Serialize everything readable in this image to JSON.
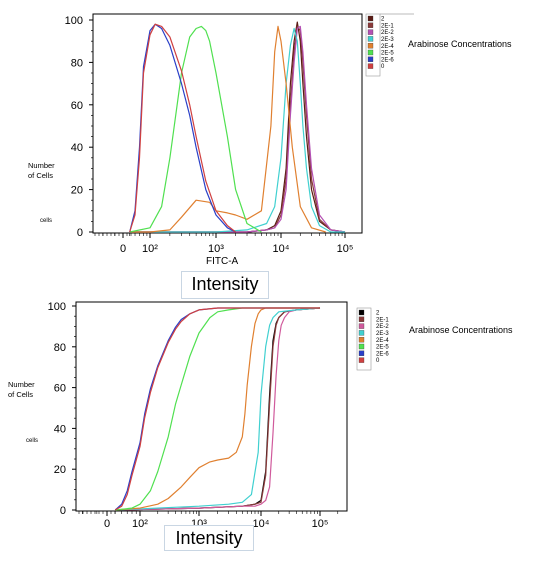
{
  "legend_title": "Arabinose Concentrations",
  "axis_caption": "Intensity",
  "chart_data": [
    {
      "type": "line",
      "xscale": "log",
      "xlabel": "FITC-A",
      "xticks": [
        "0",
        "10²",
        "10³",
        "10⁴",
        "10⁵"
      ],
      "y_label": "Number of Cells",
      "y_label_lines": [
        "Number",
        "of Cells"
      ],
      "y_sub": "cells",
      "ylim": [
        0,
        100
      ],
      "yticks": [
        "0",
        "20",
        "40",
        "60",
        "80",
        "100"
      ],
      "series": [
        {
          "name": "2",
          "color": "#5a1a14",
          "x": [
            50,
            100,
            200,
            500,
            1000,
            3000,
            6000,
            8000,
            10000,
            12000,
            14000,
            16000,
            18000,
            20000,
            22000,
            25000,
            30000,
            40000,
            60000,
            100000
          ],
          "y": [
            0,
            0,
            0,
            0,
            0,
            0,
            1,
            3,
            10,
            30,
            70,
            90,
            99,
            90,
            70,
            45,
            20,
            5,
            1,
            0
          ]
        },
        {
          "name": "2E-1",
          "color": "#8a3a3a",
          "x": [
            50,
            100,
            200,
            500,
            1000,
            3000,
            6000,
            8000,
            10000,
            12000,
            14000,
            16000,
            18000,
            20000,
            22000,
            25000,
            30000,
            40000,
            60000,
            100000
          ],
          "y": [
            0,
            0,
            0,
            0,
            0,
            0,
            1,
            2,
            8,
            25,
            60,
            85,
            97,
            95,
            80,
            55,
            25,
            6,
            1,
            0
          ]
        },
        {
          "name": "2E-2",
          "color": "#b450b4",
          "x": [
            50,
            100,
            200,
            500,
            1000,
            3000,
            6000,
            8000,
            10000,
            12000,
            14000,
            16000,
            18000,
            20000,
            22000,
            25000,
            30000,
            40000,
            60000,
            100000
          ],
          "y": [
            0,
            0,
            0,
            0,
            0,
            0,
            1,
            2,
            6,
            20,
            55,
            80,
            96,
            97,
            85,
            60,
            30,
            8,
            1,
            0
          ]
        },
        {
          "name": "2E-3",
          "color": "#40d0d0",
          "x": [
            50,
            100,
            200,
            500,
            1000,
            3000,
            6000,
            8000,
            10000,
            12000,
            14000,
            16000,
            18000,
            20000,
            22000,
            25000,
            30000,
            40000,
            60000,
            100000
          ],
          "y": [
            0,
            0,
            0,
            0,
            0,
            1,
            4,
            12,
            35,
            70,
            88,
            96,
            90,
            70,
            50,
            30,
            12,
            3,
            0,
            0
          ]
        },
        {
          "name": "2E-4",
          "color": "#e08030",
          "x": [
            50,
            100,
            200,
            300,
            500,
            800,
            1000,
            1500,
            2000,
            3000,
            5000,
            7000,
            8000,
            9000,
            10000,
            12000,
            15000,
            20000,
            30000,
            50000
          ],
          "y": [
            0,
            0,
            1,
            7,
            15,
            14,
            10,
            9,
            8,
            6,
            10,
            50,
            85,
            97,
            90,
            70,
            40,
            12,
            2,
            0
          ]
        },
        {
          "name": "2E-5",
          "color": "#50e050",
          "x": [
            50,
            100,
            150,
            200,
            300,
            400,
            500,
            600,
            700,
            800,
            1000,
            1500,
            2000,
            3000,
            5000
          ],
          "y": [
            0,
            2,
            12,
            35,
            75,
            92,
            96,
            97,
            95,
            90,
            75,
            45,
            20,
            4,
            0
          ]
        },
        {
          "name": "2E-6",
          "color": "#2a3fc8",
          "x": [
            50,
            60,
            70,
            80,
            100,
            120,
            150,
            200,
            300,
            400,
            500,
            700,
            1000,
            1500,
            2000
          ],
          "y": [
            0,
            10,
            40,
            78,
            95,
            98,
            96,
            88,
            70,
            55,
            40,
            20,
            8,
            2,
            0
          ]
        },
        {
          "name": "0",
          "color": "#d04040",
          "x": [
            50,
            60,
            70,
            80,
            100,
            120,
            150,
            200,
            300,
            400,
            500,
            700,
            1000,
            1500,
            2000
          ],
          "y": [
            0,
            8,
            35,
            75,
            93,
            98,
            97,
            92,
            76,
            60,
            45,
            24,
            10,
            3,
            0
          ]
        }
      ]
    },
    {
      "type": "line",
      "xscale": "log",
      "xlabel": "",
      "xticks": [
        "0",
        "10²",
        "10³",
        "10⁴",
        "10⁵"
      ],
      "y_label": "Number of Cells",
      "y_label_lines": [
        "Number",
        "of Cells"
      ],
      "y_sub": "cells",
      "ylim": [
        0,
        100
      ],
      "yticks": [
        "0",
        "20",
        "40",
        "60",
        "80",
        "100"
      ],
      "series": [
        {
          "name": "2",
          "color": "#000000",
          "x": [
            50,
            1000,
            5000,
            8000,
            10000,
            12000,
            14000,
            16000,
            18000,
            20000,
            25000,
            40000,
            100000
          ],
          "y": [
            0,
            1,
            2,
            3,
            5,
            20,
            60,
            88,
            97,
            100,
            103,
            104,
            105
          ]
        },
        {
          "name": "2E-1",
          "color": "#8a3a3a",
          "x": [
            50,
            1000,
            5000,
            8000,
            10000,
            12000,
            14000,
            16000,
            18000,
            20000,
            25000,
            40000,
            100000
          ],
          "y": [
            0,
            1,
            2,
            3,
            4,
            18,
            55,
            85,
            96,
            100,
            103,
            104,
            105
          ]
        },
        {
          "name": "2E-2",
          "color": "#d05a9c",
          "x": [
            50,
            1000,
            5000,
            8000,
            10000,
            12000,
            14000,
            16000,
            18000,
            20000,
            22000,
            25000,
            30000,
            40000,
            100000
          ],
          "y": [
            0,
            1,
            2,
            2,
            3,
            5,
            12,
            40,
            70,
            88,
            96,
            100,
            103,
            104,
            105
          ]
        },
        {
          "name": "2E-3",
          "color": "#40d0d0",
          "x": [
            50,
            1000,
            3000,
            5000,
            7000,
            9000,
            10000,
            12000,
            14000,
            16000,
            20000,
            40000,
            100000
          ],
          "y": [
            0,
            2,
            3,
            4,
            8,
            30,
            60,
            85,
            96,
            100,
            103,
            104,
            105
          ]
        },
        {
          "name": "2E-4",
          "color": "#e08030",
          "x": [
            50,
            100,
            200,
            300,
            500,
            700,
            1000,
            1500,
            2000,
            3000,
            4000,
            5000,
            5500,
            6000,
            7000,
            8000,
            9000,
            10000,
            12000,
            20000,
            100000
          ],
          "y": [
            0,
            1,
            3,
            6,
            12,
            17,
            22,
            25,
            26,
            27,
            30,
            38,
            50,
            65,
            85,
            97,
            102,
            104,
            105,
            105,
            105
          ]
        },
        {
          "name": "2E-5",
          "color": "#50e050",
          "x": [
            50,
            80,
            100,
            150,
            200,
            300,
            400,
            500,
            700,
            1000,
            1500,
            2000,
            3000,
            5000,
            100000
          ],
          "y": [
            0,
            1,
            3,
            10,
            20,
            38,
            55,
            65,
            80,
            92,
            100,
            103,
            104,
            105,
            105
          ]
        },
        {
          "name": "2E-6",
          "color": "#2a3fc8",
          "x": [
            50,
            60,
            70,
            80,
            100,
            120,
            150,
            200,
            300,
            400,
            500,
            700,
            1000,
            2000,
            100000
          ],
          "y": [
            0,
            3,
            10,
            20,
            35,
            50,
            63,
            75,
            88,
            95,
            99,
            102,
            104,
            105,
            105
          ]
        },
        {
          "name": "0",
          "color": "#d04040",
          "x": [
            50,
            60,
            70,
            80,
            100,
            120,
            150,
            200,
            300,
            400,
            500,
            700,
            1000,
            2000,
            100000
          ],
          "y": [
            0,
            2,
            8,
            18,
            33,
            48,
            61,
            74,
            87,
            94,
            98,
            102,
            104,
            105,
            105
          ]
        }
      ]
    }
  ]
}
